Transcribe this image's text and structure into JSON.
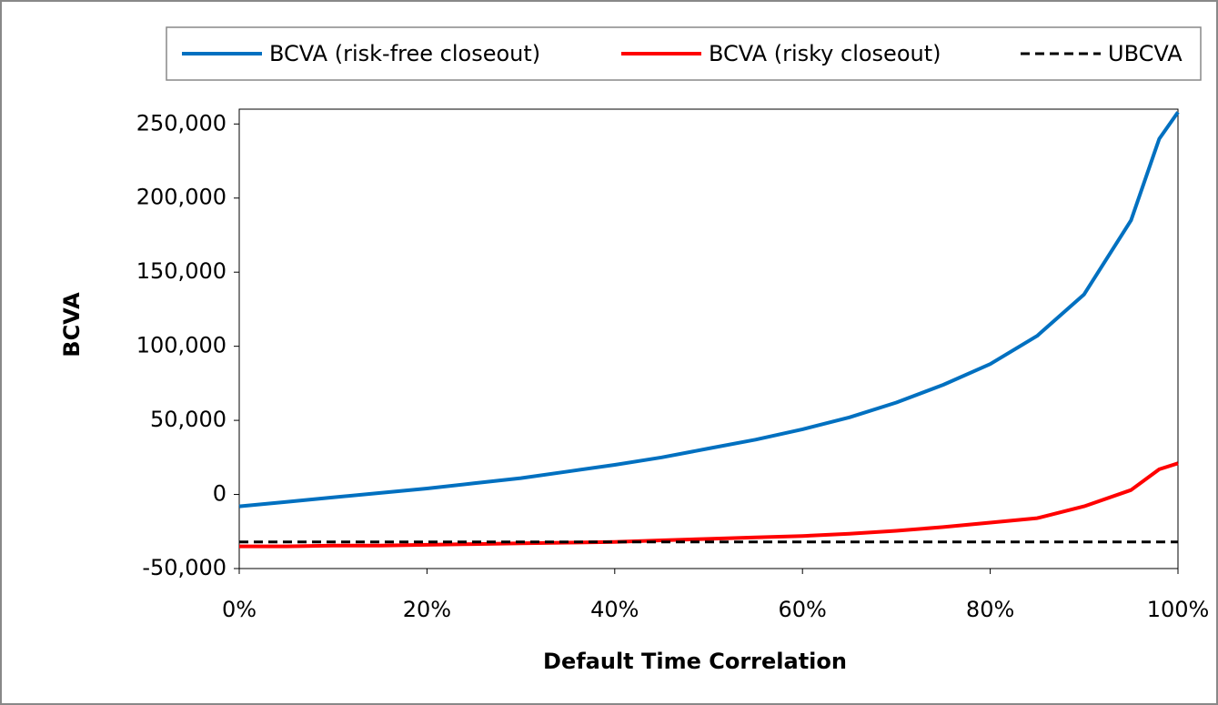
{
  "chart_data": {
    "type": "line",
    "x_label": "Default Time Correlation",
    "y_label": "BCVA",
    "x": [
      0,
      5,
      10,
      15,
      20,
      25,
      30,
      35,
      40,
      45,
      50,
      55,
      60,
      65,
      70,
      75,
      80,
      85,
      90,
      95,
      98,
      100
    ],
    "series": [
      {
        "name": "BCVA (risk-free closeout)",
        "color": "#0070c0",
        "dash": false,
        "values": [
          -8000,
          -5000,
          -2000,
          1000,
          4000,
          7500,
          11000,
          15500,
          20000,
          25000,
          31000,
          37000,
          44000,
          52000,
          62000,
          74000,
          88000,
          107000,
          135000,
          185000,
          240000,
          258000
        ]
      },
      {
        "name": "BCVA (risky closeout)",
        "color": "#ff0000",
        "dash": false,
        "values": [
          -35000,
          -35000,
          -34500,
          -34500,
          -34000,
          -33500,
          -33000,
          -32500,
          -32000,
          -31000,
          -30000,
          -29000,
          -28000,
          -26500,
          -24500,
          -22000,
          -19000,
          -16000,
          -8000,
          3000,
          17000,
          21000
        ]
      },
      {
        "name": "UBCVA",
        "color": "#000000",
        "dash": true,
        "values": [
          -32000,
          -32000,
          -32000,
          -32000,
          -32000,
          -32000,
          -32000,
          -32000,
          -32000,
          -32000,
          -32000,
          -32000,
          -32000,
          -32000,
          -32000,
          -32000,
          -32000,
          -32000,
          -32000,
          -32000,
          -32000,
          -32000
        ]
      }
    ],
    "xlim": [
      0,
      100
    ],
    "xticks": [
      {
        "value": 0,
        "label": "0%"
      },
      {
        "value": 20,
        "label": "20%"
      },
      {
        "value": 40,
        "label": "40%"
      },
      {
        "value": 60,
        "label": "60%"
      },
      {
        "value": 80,
        "label": "80%"
      },
      {
        "value": 100,
        "label": "100%"
      }
    ],
    "ylim": [
      -50000,
      260000
    ],
    "yticks": [
      {
        "value": -50000,
        "label": "-50,000"
      },
      0,
      {
        "value": 50000,
        "label": "50,000"
      },
      {
        "value": 100000,
        "label": "100,000"
      },
      {
        "value": 150000,
        "label": "150,000"
      },
      {
        "value": 200000,
        "label": "200,000"
      },
      {
        "value": 250000,
        "label": "250,000"
      }
    ],
    "grid": false,
    "legend": "top"
  }
}
